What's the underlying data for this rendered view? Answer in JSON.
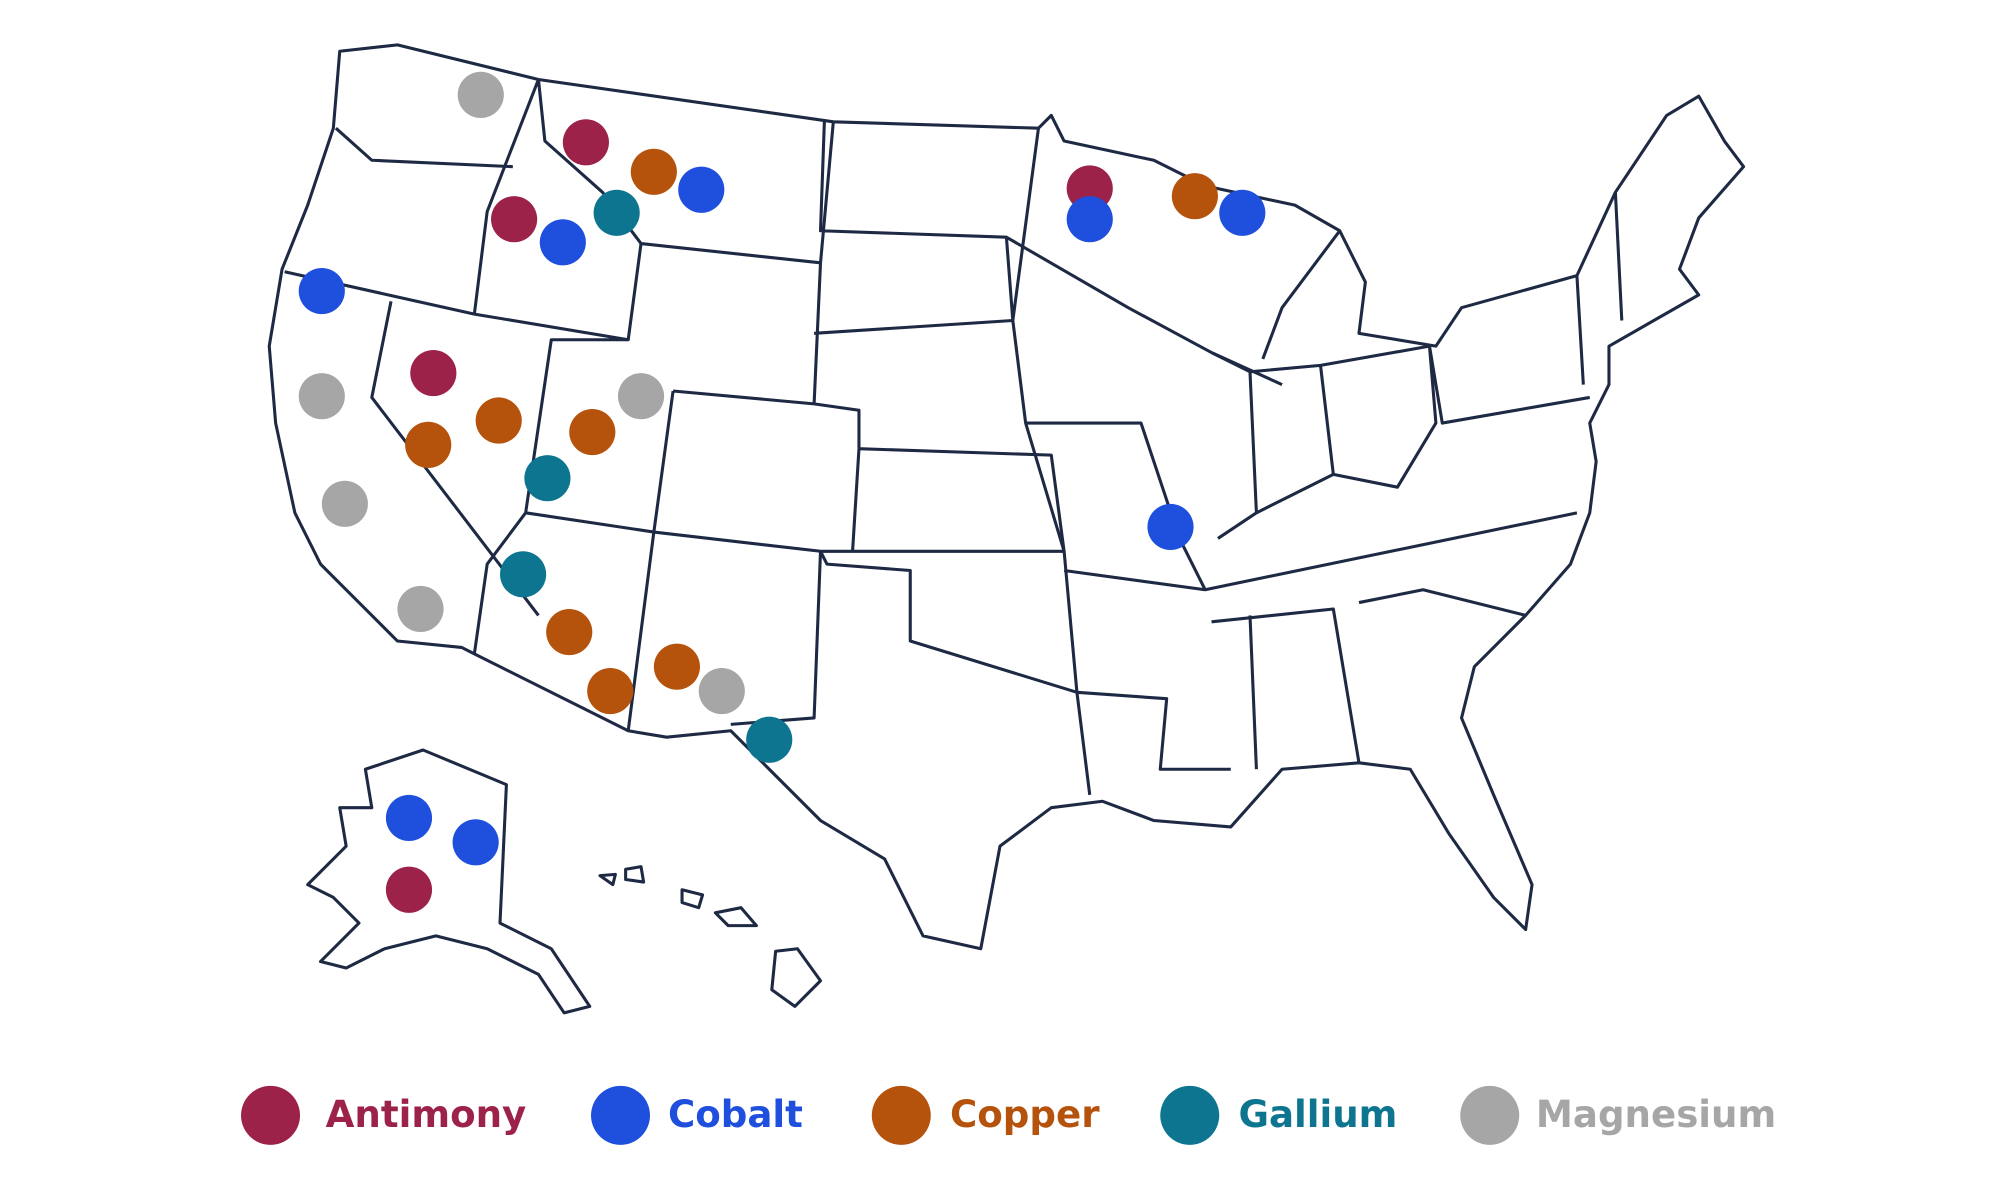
{
  "legend": [
    {
      "label": "Antimony",
      "color": "#9c2249"
    },
    {
      "label": "Cobalt",
      "color": "#1f4fdd"
    },
    {
      "label": "Copper",
      "color": "#b5530d"
    },
    {
      "label": "Gallium",
      "color": "#0e7590"
    },
    {
      "label": "Magnesium",
      "color": "#a6a6a6"
    }
  ]
}
